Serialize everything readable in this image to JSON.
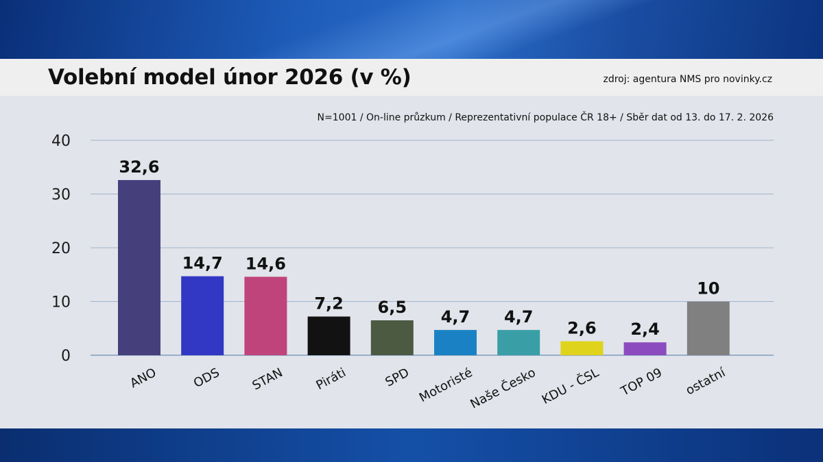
{
  "header": {
    "title": "Volební model únor 2026 (v %)",
    "source": "zdroj: agentura NMS pro novinky.cz"
  },
  "subtitle": "N=1001 / On-line průzkum / Reprezentativní populace ČR 18+ / Sběr dat od 13. do 17. 2. 2026",
  "chart_data": {
    "type": "bar",
    "title": "Volební model únor 2026 (v %)",
    "xlabel": "",
    "ylabel": "",
    "ylim": [
      0,
      40
    ],
    "yticks": [
      0,
      10,
      20,
      30,
      40
    ],
    "grid": true,
    "categories": [
      "ANO",
      "ODS",
      "STAN",
      "Piráti",
      "SPD",
      "Motoristé",
      "Naše Česko",
      "KDU - ČSL",
      "TOP 09",
      "ostatní"
    ],
    "values": [
      32.6,
      14.7,
      14.6,
      7.2,
      6.5,
      4.7,
      4.7,
      2.6,
      2.4,
      10
    ],
    "value_labels": [
      "32,6",
      "14,7",
      "14,6",
      "7,2",
      "6,5",
      "4,7",
      "4,7",
      "2,6",
      "2,4",
      "10"
    ],
    "colors": [
      "#45407c",
      "#3237c4",
      "#c0447c",
      "#121212",
      "#4c5a42",
      "#1a82c4",
      "#3a9ea6",
      "#dfd31c",
      "#8c4cc0",
      "#808080"
    ]
  },
  "colors": {
    "grid": "#9fb4cf",
    "axis": "#7f9bbf"
  }
}
